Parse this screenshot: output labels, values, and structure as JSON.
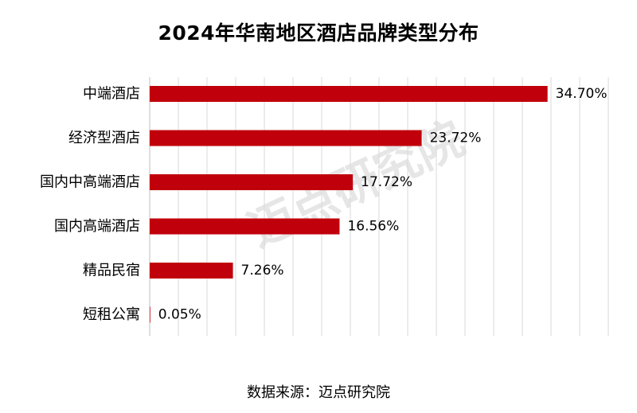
{
  "chart_data": {
    "type": "bar",
    "orientation": "horizontal",
    "title": "2024年华南地区酒店品牌类型分布",
    "categories": [
      "中端酒店",
      "经济型酒店",
      "国内中高端酒店",
      "国内高端酒店",
      "精品民宿",
      "短租公寓"
    ],
    "values": [
      34.7,
      23.72,
      17.72,
      16.56,
      7.26,
      0.05
    ],
    "data_labels": [
      "34.70%",
      "23.72%",
      "17.72%",
      "16.56%",
      "7.26%",
      "0.05%"
    ],
    "unit": "%",
    "xlim": [
      0,
      40
    ],
    "grid": true,
    "legend": "none",
    "bar_color": "#c0000b"
  },
  "footer": {
    "source": "数据来源：迈点研究院"
  },
  "watermark": {
    "text": "迈点研究院"
  }
}
